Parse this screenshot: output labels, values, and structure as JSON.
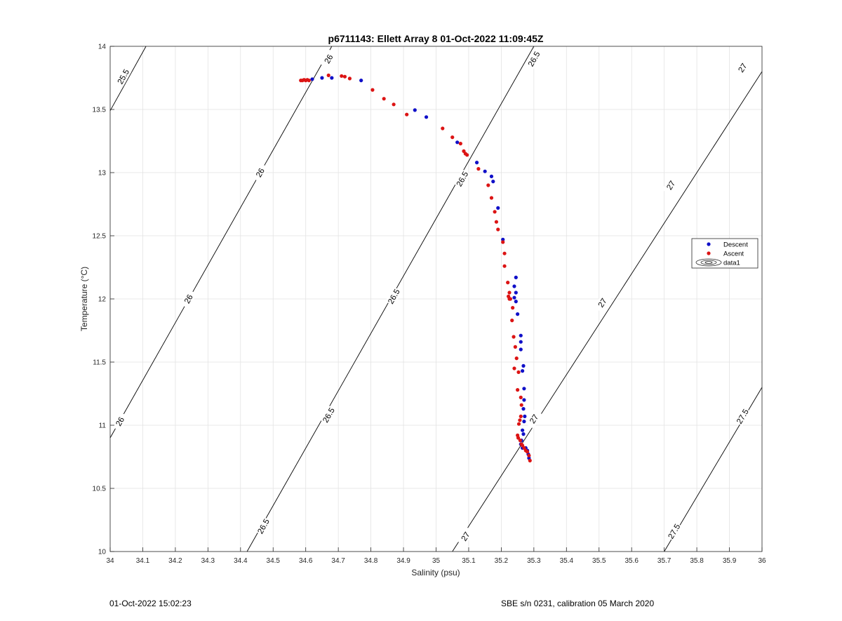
{
  "chart_data": {
    "type": "scatter",
    "title": "p6711143: Ellett Array 8 01-Oct-2022 11:09:45Z",
    "xlabel": "Salinity (psu)",
    "ylabel": "Temperature (°C)",
    "xlim": [
      34,
      36
    ],
    "ylim": [
      10,
      14
    ],
    "xticks": [
      34,
      34.1,
      34.2,
      34.3,
      34.4,
      34.5,
      34.6,
      34.7,
      34.8,
      34.9,
      35,
      35.1,
      35.2,
      35.3,
      35.4,
      35.5,
      35.6,
      35.7,
      35.8,
      35.9,
      36
    ],
    "yticks": [
      10,
      10.5,
      11,
      11.5,
      12,
      12.5,
      13,
      13.5,
      14
    ],
    "grid": true,
    "legend_position": "right",
    "legend": [
      "Descent",
      "Ascent",
      "data1"
    ],
    "contours": [
      {
        "level": "25.5",
        "points": [
          [
            34,
            13.49
          ],
          [
            34.11,
            14
          ]
        ],
        "labels": [
          [
            34.04,
            13.76
          ]
        ]
      },
      {
        "level": "26",
        "points": [
          [
            34,
            10.9
          ],
          [
            34.68,
            14
          ]
        ],
        "labels": [
          [
            34.03,
            11.03
          ],
          [
            34.24,
            12.0
          ],
          [
            34.46,
            13.0
          ],
          [
            34.67,
            13.9
          ]
        ]
      },
      {
        "level": "26.5",
        "points": [
          [
            34.42,
            10
          ],
          [
            35.3,
            14
          ]
        ],
        "labels": [
          [
            34.47,
            10.2
          ],
          [
            34.67,
            11.08
          ],
          [
            34.87,
            12.02
          ],
          [
            35.08,
            12.95
          ],
          [
            35.3,
            13.9
          ]
        ]
      },
      {
        "level": "27",
        "points": [
          [
            35.05,
            10
          ],
          [
            36,
            13.8
          ]
        ],
        "labels": [
          [
            35.09,
            10.12
          ],
          [
            35.3,
            11.05
          ],
          [
            35.51,
            11.97
          ],
          [
            35.72,
            12.9
          ],
          [
            35.94,
            13.83
          ]
        ]
      },
      {
        "level": "27.5",
        "points": [
          [
            35.7,
            10
          ],
          [
            36,
            11.3
          ]
        ],
        "labels": [
          [
            35.73,
            10.16
          ],
          [
            35.94,
            11.07
          ]
        ]
      }
    ],
    "series": [
      {
        "name": "Descent",
        "color": "#1010c8",
        "points": [
          [
            34.62,
            13.74
          ],
          [
            34.65,
            13.75
          ],
          [
            34.68,
            13.75
          ],
          [
            34.77,
            13.73
          ],
          [
            34.935,
            13.495
          ],
          [
            34.97,
            13.44
          ],
          [
            35.065,
            13.24
          ],
          [
            35.125,
            13.08
          ],
          [
            35.15,
            13.01
          ],
          [
            35.17,
            12.97
          ],
          [
            35.175,
            12.93
          ],
          [
            35.19,
            12.72
          ],
          [
            35.205,
            12.47
          ],
          [
            35.245,
            12.17
          ],
          [
            35.24,
            12.1
          ],
          [
            35.245,
            12.05
          ],
          [
            35.24,
            12.01
          ],
          [
            35.245,
            11.98
          ],
          [
            35.25,
            11.88
          ],
          [
            35.26,
            11.71
          ],
          [
            35.26,
            11.66
          ],
          [
            35.26,
            11.6
          ],
          [
            35.268,
            11.47
          ],
          [
            35.265,
            11.43
          ],
          [
            35.27,
            11.29
          ],
          [
            35.27,
            11.2
          ],
          [
            35.268,
            11.13
          ],
          [
            35.272,
            11.07
          ],
          [
            35.27,
            11.03
          ],
          [
            35.265,
            10.96
          ],
          [
            35.268,
            10.93
          ],
          [
            35.262,
            10.88
          ],
          [
            35.26,
            10.85
          ],
          [
            35.265,
            10.82
          ],
          [
            35.275,
            10.82
          ],
          [
            35.28,
            10.8
          ],
          [
            35.283,
            10.77
          ],
          [
            35.285,
            10.74
          ]
        ]
      },
      {
        "name": "Ascent",
        "color": "#dc1414",
        "points": [
          [
            34.585,
            13.73
          ],
          [
            34.59,
            13.73
          ],
          [
            34.595,
            13.735
          ],
          [
            34.6,
            13.73
          ],
          [
            34.605,
            13.735
          ],
          [
            34.61,
            13.73
          ],
          [
            34.67,
            13.77
          ],
          [
            34.71,
            13.765
          ],
          [
            34.72,
            13.76
          ],
          [
            34.735,
            13.745
          ],
          [
            34.805,
            13.655
          ],
          [
            34.84,
            13.585
          ],
          [
            34.87,
            13.54
          ],
          [
            34.91,
            13.46
          ],
          [
            35.02,
            13.35
          ],
          [
            35.05,
            13.28
          ],
          [
            35.075,
            13.23
          ],
          [
            35.085,
            13.17
          ],
          [
            35.09,
            13.15
          ],
          [
            35.095,
            13.14
          ],
          [
            35.13,
            13.03
          ],
          [
            35.16,
            12.9
          ],
          [
            35.17,
            12.8
          ],
          [
            35.18,
            12.69
          ],
          [
            35.185,
            12.61
          ],
          [
            35.19,
            12.55
          ],
          [
            35.205,
            12.45
          ],
          [
            35.21,
            12.36
          ],
          [
            35.21,
            12.26
          ],
          [
            35.22,
            12.13
          ],
          [
            35.225,
            12.05
          ],
          [
            35.222,
            12.02
          ],
          [
            35.228,
            12.0
          ],
          [
            35.225,
            12.0
          ],
          [
            35.235,
            11.93
          ],
          [
            35.233,
            11.83
          ],
          [
            35.238,
            11.7
          ],
          [
            35.243,
            11.62
          ],
          [
            35.247,
            11.53
          ],
          [
            35.24,
            11.45
          ],
          [
            35.253,
            11.42
          ],
          [
            35.25,
            11.28
          ],
          [
            35.26,
            11.22
          ],
          [
            35.262,
            11.16
          ],
          [
            35.26,
            11.07
          ],
          [
            35.257,
            11.04
          ],
          [
            35.254,
            11.01
          ],
          [
            35.25,
            10.92
          ],
          [
            35.252,
            10.9
          ],
          [
            35.258,
            10.88
          ],
          [
            35.262,
            10.85
          ],
          [
            35.265,
            10.84
          ],
          [
            35.27,
            10.82
          ],
          [
            35.275,
            10.8
          ],
          [
            35.28,
            10.79
          ],
          [
            35.285,
            10.76
          ],
          [
            35.288,
            10.72
          ]
        ]
      }
    ]
  },
  "footer": {
    "left": "01-Oct-2022 15:02:23",
    "right": "SBE s/n 0231, calibration 05 March 2020"
  }
}
